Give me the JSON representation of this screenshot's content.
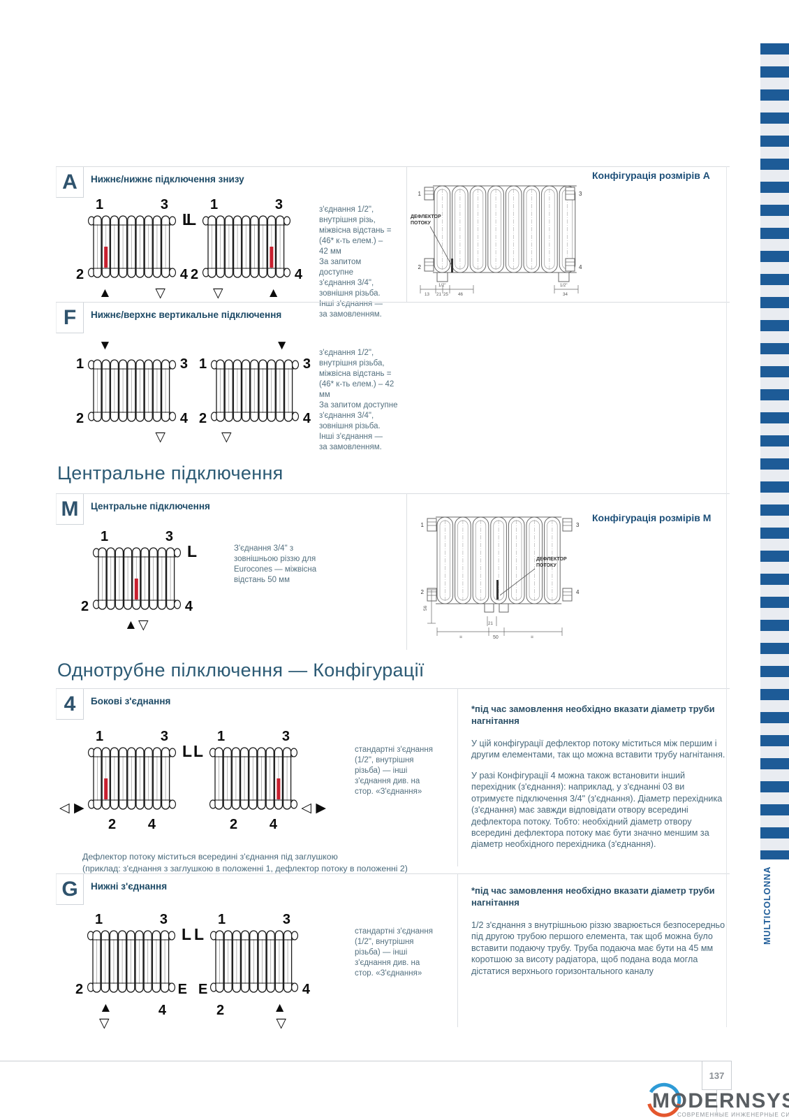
{
  "page": {
    "number": "137",
    "side_tab": "MULTICOLONNA",
    "logo": {
      "name": "MODERNSYS",
      "tagline": "СОВРЕМЕННЫЕ ИНЖЕНЕРНЫЕ СИСТЕМЫ"
    }
  },
  "colors": {
    "accent_blue": "#1d5b97",
    "stripe_gray": "#e9ecf1",
    "navy": "#1d4a66",
    "red": "#c8202f"
  },
  "headings": {
    "central": "Центральне підключення",
    "single_pipe": "Однотрубне пілключення — Конфігурації"
  },
  "sections": {
    "a": {
      "letter": "A",
      "title": "Нижнє/нижнє підключення знизу",
      "desc": "з'єднання 1/2\",\nвнутрішня різь,\nміжвісна відстань =\n(46* к-ть елем.) –\n42 мм\nЗа запитом доступне\nз'єднання 3/4\",\nзовнішня різьба.\nІнші з'єднання —\nза замовленням.",
      "config_title": "Конфігурація розмірів А",
      "tech": {
        "deflector_1": "ДЕФЛЕКТОР",
        "deflector_2": "ПОТОКУ",
        "n1": "1",
        "n2": "2",
        "n3": "3",
        "n4": "4",
        "d_13": "13",
        "d_21": "21",
        "d_25": "25",
        "d_46": "46",
        "d_12l": "1/2\"",
        "d_12r": "1/2\"",
        "d_34": "34"
      }
    },
    "f": {
      "letter": "F",
      "title": "Нижнє/верхнє вертикальне підключення",
      "desc": "з'єднання 1/2\",\nвнутрішня різьба,\nміжвісна відстань =\n(46* к-ть елем.) – 42 мм\nЗа запитом доступне\nз'єднання 3/4\",\nзовнішня різьба.\nІнші з'єднання —\nза замовленням."
    },
    "m": {
      "letter": "M",
      "title": "Центральне підключення",
      "desc": "З'єднання 3/4\" з\nзовнішньою різзю для\nEurocones — міжвісна\nвідстань 50 мм",
      "config_title": "Конфігурація розмірів М",
      "tech": {
        "deflector_1": "ДЕФЛЕКТОР",
        "deflector_2": "ПОТОКУ",
        "n1": "1",
        "n2": "2",
        "n3": "3",
        "n4": "4",
        "d_56": "56",
        "d_21": "21",
        "d_50": "50",
        "eq_l": "=",
        "eq_r": "="
      }
    },
    "c4": {
      "letter": "4",
      "title": "Бокові з'єднання",
      "desc": "стандартні з'єднання\n(1/2\", внутрішня\nрізьба) — інші\nз'єднання див. на\nстор. «З'єднання»",
      "note_bold": "*під час замовлення необхідно вказати діаметр труби нагнітання",
      "p1": "У цій конфігурації дефлектор потоку міститься між першим і другим елементами, так що можна вставити трубу нагнітання.",
      "p2": "У разі Конфігурації 4 можна також встановити інший перехідник (з'єднання): наприклад, у з'єднанні 03 ви отримуєте підключення 3/4\" (з'єднання). Діаметр перехідника (з'єднання) має завжди відповідати отвору всередині дефлектора потоку. Тобто: необхідний діаметр отвору всередині дефлектора потоку має бути значно меншим за діаметр необхідного перехідника (з'єднання).",
      "footnote": "Дефлектор потоку міститься всередині з'єднання під заглушкою\n(приклад: з'єднання з заглушкою в положенні 1, дефлектор потоку в положенні 2)"
    },
    "g": {
      "letter": "G",
      "title": "Нижні з'єднання",
      "desc": "стандартні з'єднання\n(1/2\", внутрішня\nрізьба) — інші\nз'єднання див. на\nстор. «З'єднання»",
      "note_bold": "*під час замовлення необхідно вказати діаметр труби нагнітання",
      "p1": "1/2 з'єднання з внутрішньою різзю зварюється безпосередньо під другою трубою першого елемента, так щоб можна було вставити подаючу трубу. Труба подаюча має бути на 45 мм коротшою за висоту радіатора, щоб подана вода могла дістатися верхнього горизонтального каналу"
    }
  },
  "diagrams": {
    "a1": {
      "tl": "1",
      "tr": "3",
      "bl": "2",
      "br": "4",
      "L": "right",
      "red": 2,
      "arrows": [
        {
          "glyph": "▲",
          "pos": "bl"
        },
        {
          "glyph": "▽",
          "pos": "br"
        }
      ]
    },
    "a2": {
      "tl": "1",
      "tr": "3",
      "bl": "2",
      "br": "4",
      "L": "left",
      "red": 8,
      "arrows": [
        {
          "glyph": "▽",
          "pos": "bl"
        },
        {
          "glyph": "▲",
          "pos": "br"
        }
      ]
    },
    "f1": {
      "tl": "1",
      "tr": "3",
      "bl": "2",
      "br": "4",
      "red": 0,
      "arrows": [
        {
          "glyph": "▼",
          "pos": "tl"
        },
        {
          "glyph": "▽",
          "pos": "br"
        }
      ]
    },
    "f2": {
      "tl": "1",
      "tr": "3",
      "bl": "2",
      "br": "4",
      "red": 0,
      "arrows": [
        {
          "glyph": "▼",
          "pos": "tr"
        },
        {
          "glyph": "▽",
          "pos": "bl"
        }
      ]
    },
    "m1": {
      "tl": "1",
      "tr": "3",
      "bl": "2",
      "br": "4",
      "L": "right",
      "red": 5,
      "arrows": [
        {
          "glyph": "▲",
          "pos": "bc1"
        },
        {
          "glyph": "▽",
          "pos": "bc2"
        }
      ]
    },
    "q1": {
      "tl": "1",
      "tr": "3",
      "bl": "2",
      "br": "4",
      "L": "right",
      "red": 2,
      "arrows": [
        {
          "glyph": "◁",
          "pos": "ml1"
        },
        {
          "glyph": "▶",
          "pos": "ml2"
        }
      ]
    },
    "q2": {
      "tl": "1",
      "tr": "3",
      "bl": "2",
      "br": "4",
      "L": "left",
      "red": 8,
      "arrows": [
        {
          "glyph": "◁",
          "pos": "mr1"
        },
        {
          "glyph": "▶",
          "pos": "mr2"
        }
      ]
    },
    "g1": {
      "tl": "1",
      "tr": "3",
      "bl": "2",
      "br": "E",
      "L": "right",
      "red": 0,
      "extra": "4",
      "extra_pos": "below-br",
      "arrows": [
        {
          "glyph": "▲",
          "pos": "bls1"
        },
        {
          "glyph": "▽",
          "pos": "bls2"
        }
      ]
    },
    "g2": {
      "tl": "1",
      "tr": "3",
      "bl": "E",
      "br": "4",
      "L": "left",
      "red": 0,
      "extra": "2",
      "extra_pos": "below-bl",
      "arrows": [
        {
          "glyph": "▲",
          "pos": "brs1"
        },
        {
          "glyph": "▽",
          "pos": "brs2"
        }
      ]
    }
  }
}
